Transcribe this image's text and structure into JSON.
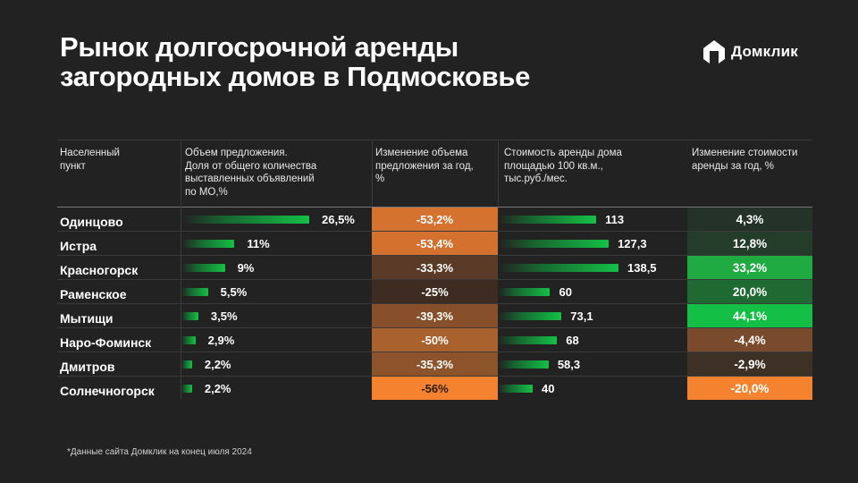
{
  "header": {
    "title_lines": [
      "Рынок долгосрочной аренды",
      "загородных домов в Подмосковье"
    ],
    "logo": {
      "icon": "domclick-house-icon",
      "text": "Домклик"
    }
  },
  "table": {
    "columns": [
      {
        "key": "city",
        "label": "Населенный\nпункт"
      },
      {
        "key": "share",
        "label": "Объем предложения.\nДоля от общего количества\nвыставленных объявлений\nпо МО,%"
      },
      {
        "key": "supply_change",
        "label": "Изменение объема\nпредложения за год,\n%"
      },
      {
        "key": "price",
        "label": "Стоимость аренды дома\nплощадью 100 кв.м.,\nтыс.руб./мес."
      },
      {
        "key": "price_change",
        "label": "Изменение стоимости\nаренды за год, %"
      }
    ],
    "rows": [
      {
        "city": "Одинцово",
        "share": 26.5,
        "share_label": "26,5%",
        "supply_change": -53.2,
        "supply_change_label": "-53,2%",
        "price": 113,
        "price_label": "113",
        "price_change": 4.3,
        "price_change_label": "4,3%"
      },
      {
        "city": "Истра",
        "share": 11,
        "share_label": "11%",
        "supply_change": -53.4,
        "supply_change_label": "-53,4%",
        "price": 127.3,
        "price_label": "127,3",
        "price_change": 12.8,
        "price_change_label": "12,8%"
      },
      {
        "city": "Красногорск",
        "share": 9,
        "share_label": "9%",
        "supply_change": -33.3,
        "supply_change_label": "-33,3%",
        "price": 138.5,
        "price_label": "138,5",
        "price_change": 33.2,
        "price_change_label": "33,2%"
      },
      {
        "city": "Раменское",
        "share": 5.5,
        "share_label": "5,5%",
        "supply_change": -25,
        "supply_change_label": "-25%",
        "price": 60,
        "price_label": "60",
        "price_change": 20.0,
        "price_change_label": "20,0%"
      },
      {
        "city": "Мытищи",
        "share": 3.5,
        "share_label": "3,5%",
        "supply_change": -39.3,
        "supply_change_label": "-39,3%",
        "price": 73.1,
        "price_label": "73,1",
        "price_change": 44.1,
        "price_change_label": "44,1%"
      },
      {
        "city": "Наро-Фоминск",
        "share": 2.9,
        "share_label": "2,9%",
        "supply_change": -50,
        "supply_change_label": "-50%",
        "price": 68,
        "price_label": "68",
        "price_change": -4.4,
        "price_change_label": "-4,4%"
      },
      {
        "city": "Дмитров",
        "share": 2.2,
        "share_label": "2,2%",
        "supply_change": -35.3,
        "supply_change_label": "-35,3%",
        "price": 58.3,
        "price_label": "58,3",
        "price_change": -2.9,
        "price_change_label": "-2,9%"
      },
      {
        "city": "Солнечногорск",
        "share": 2.2,
        "share_label": "2,2%",
        "supply_change": -56,
        "supply_change_label": "-56%",
        "price": 40,
        "price_label": "40",
        "price_change": -20.0,
        "price_change_label": "-20,0%"
      }
    ],
    "heat_colors": {
      "supply_change": [
        "#d6722f",
        "#d5712f",
        "#5a3b27",
        "#3e2c22",
        "#87502b",
        "#a9612d",
        "#8d532b",
        "#f4822f"
      ],
      "price_change": [
        "#253228",
        "#243d2a",
        "#1faa42",
        "#1f6a33",
        "#13bf44",
        "#7a4a2c",
        "#3d3025",
        "#f5822f"
      ]
    },
    "supply_text_colors": [
      "#ffffff",
      "#ffffff",
      "#ffffff",
      "#ffffff",
      "#ffffff",
      "#ffffff",
      "#ffffff",
      "#2a1a10"
    ]
  },
  "footnote": "*Данные сайта Домклик на конец июля 2024"
}
